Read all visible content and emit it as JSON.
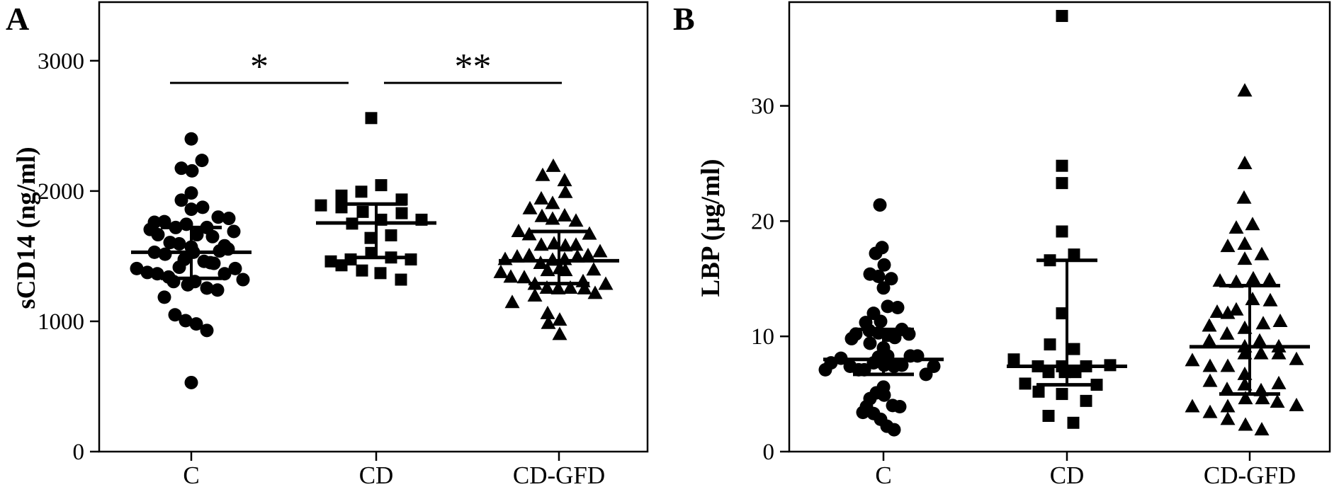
{
  "figure": {
    "background": "#ffffff",
    "ink_color": "#000000"
  },
  "chart_data": [
    {
      "type": "scatter",
      "panel_label": "A",
      "title": "",
      "xlabel": "",
      "ylabel": "sCD14 (ng/ml)",
      "categories": [
        "C",
        "CD",
        "CD-GFD"
      ],
      "ylim": [
        0,
        3450
      ],
      "yticks": [
        0,
        1000,
        2000,
        3000
      ],
      "ytick_labels": [
        "0",
        "1000",
        "2000",
        "3000"
      ],
      "grid": false,
      "marker_color": "#000000",
      "groups": [
        {
          "name": "C",
          "marker": "circle",
          "median": 1530,
          "q1": 1330,
          "q3": 1720,
          "points": [
            [
              0,
              2400
            ],
            [
              15,
              2235
            ],
            [
              -14,
              2175
            ],
            [
              1,
              2155
            ],
            [
              0,
              1985
            ],
            [
              -14,
              1930
            ],
            [
              0,
              1860
            ],
            [
              16,
              1875
            ],
            [
              38,
              1800
            ],
            [
              53,
              1790
            ],
            [
              -52,
              1760
            ],
            [
              -38,
              1765
            ],
            [
              -22,
              1720
            ],
            [
              -7,
              1745
            ],
            [
              -58,
              1705
            ],
            [
              -47,
              1665
            ],
            [
              22,
              1720
            ],
            [
              60,
              1690
            ],
            [
              8,
              1665
            ],
            [
              30,
              1650
            ],
            [
              -30,
              1605
            ],
            [
              -17,
              1595
            ],
            [
              0,
              1570
            ],
            [
              47,
              1580
            ],
            [
              -52,
              1530
            ],
            [
              -37,
              1515
            ],
            [
              -10,
              1475
            ],
            [
              3,
              1530
            ],
            [
              40,
              1540
            ],
            [
              52,
              1555
            ],
            [
              -77,
              1405
            ],
            [
              -62,
              1375
            ],
            [
              -48,
              1365
            ],
            [
              -17,
              1415
            ],
            [
              -32,
              1340
            ],
            [
              -5,
              1280
            ],
            [
              18,
              1460
            ],
            [
              27,
              1450
            ],
            [
              32,
              1445
            ],
            [
              47,
              1365
            ],
            [
              62,
              1405
            ],
            [
              73,
              1320
            ],
            [
              -25,
              1305
            ],
            [
              5,
              1305
            ],
            [
              22,
              1255
            ],
            [
              37,
              1240
            ],
            [
              -38,
              1185
            ],
            [
              -23,
              1050
            ],
            [
              -8,
              1005
            ],
            [
              7,
              980
            ],
            [
              22,
              930
            ],
            [
              0,
              530
            ]
          ]
        },
        {
          "name": "CD",
          "marker": "square",
          "median": 1755,
          "q1": 1490,
          "q3": 1900,
          "points": [
            [
              -7,
              2560
            ],
            [
              7,
              2045
            ],
            [
              -21,
              1995
            ],
            [
              -49,
              1965
            ],
            [
              -78,
              1890
            ],
            [
              -49,
              1875
            ],
            [
              36,
              1935
            ],
            [
              -19,
              1840
            ],
            [
              36,
              1830
            ],
            [
              -34,
              1750
            ],
            [
              7,
              1780
            ],
            [
              64,
              1780
            ],
            [
              -8,
              1640
            ],
            [
              21,
              1660
            ],
            [
              -7,
              1525
            ],
            [
              -64,
              1460
            ],
            [
              -49,
              1430
            ],
            [
              -36,
              1475
            ],
            [
              21,
              1490
            ],
            [
              49,
              1475
            ],
            [
              -20,
              1390
            ],
            [
              6,
              1370
            ],
            [
              35,
              1320
            ]
          ]
        },
        {
          "name": "CD-GFD",
          "marker": "triangle",
          "median": 1465,
          "q1": 1290,
          "q3": 1690,
          "points": [
            [
              -8,
              2190
            ],
            [
              -23,
              2120
            ],
            [
              8,
              2080
            ],
            [
              9,
              1990
            ],
            [
              -25,
              1940
            ],
            [
              -9,
              1905
            ],
            [
              -41,
              1865
            ],
            [
              -24,
              1805
            ],
            [
              -9,
              1785
            ],
            [
              8,
              1810
            ],
            [
              24,
              1770
            ],
            [
              -57,
              1690
            ],
            [
              -42,
              1665
            ],
            [
              43,
              1670
            ],
            [
              -25,
              1585
            ],
            [
              -7,
              1595
            ],
            [
              9,
              1580
            ],
            [
              24,
              1585
            ],
            [
              58,
              1535
            ],
            [
              -76,
              1475
            ],
            [
              -59,
              1495
            ],
            [
              -42,
              1505
            ],
            [
              -26,
              1445
            ],
            [
              -9,
              1470
            ],
            [
              8,
              1475
            ],
            [
              26,
              1495
            ],
            [
              41,
              1505
            ],
            [
              -82,
              1375
            ],
            [
              -68,
              1340
            ],
            [
              -49,
              1335
            ],
            [
              -16,
              1390
            ],
            [
              1,
              1405
            ],
            [
              9,
              1390
            ],
            [
              49,
              1395
            ],
            [
              -34,
              1285
            ],
            [
              -17,
              1255
            ],
            [
              -1,
              1250
            ],
            [
              16,
              1255
            ],
            [
              34,
              1305
            ],
            [
              36,
              1250
            ],
            [
              51,
              1215
            ],
            [
              66,
              1285
            ],
            [
              -66,
              1145
            ],
            [
              -34,
              1195
            ],
            [
              -16,
              1060
            ],
            [
              -15,
              985
            ],
            [
              1,
              1010
            ],
            [
              1,
              900
            ]
          ]
        }
      ],
      "significance": [
        {
          "between": [
            "C",
            "CD"
          ],
          "label": "*",
          "bar_y": 2830,
          "x1_offset": -30,
          "x2_offset": -39
        },
        {
          "between": [
            "CD",
            "CD-GFD"
          ],
          "label": "**",
          "bar_y": 2830,
          "x1_offset": 11,
          "x2_offset": 4
        }
      ]
    },
    {
      "type": "scatter",
      "panel_label": "B",
      "title": "",
      "xlabel": "",
      "ylabel": "LBP (µg/ml)",
      "categories": [
        "C",
        "CD",
        "CD-GFD"
      ],
      "ylim": [
        0,
        39
      ],
      "yticks": [
        0,
        10,
        20,
        30
      ],
      "ytick_labels": [
        "0",
        "10",
        "20",
        "30"
      ],
      "grid": false,
      "marker_color": "#000000",
      "groups": [
        {
          "name": "C",
          "marker": "circle",
          "median": 8.0,
          "q1": 6.7,
          "q3": 10.6,
          "points": [
            [
              -5,
              21.4
            ],
            [
              -11,
              17.2
            ],
            [
              -2,
              17.7
            ],
            [
              1,
              16.2
            ],
            [
              -19,
              15.4
            ],
            [
              -7,
              15.2
            ],
            [
              11,
              15.0
            ],
            [
              0,
              14.2
            ],
            [
              6,
              12.6
            ],
            [
              20,
              12.5
            ],
            [
              -14,
              12.0
            ],
            [
              -4,
              11.3
            ],
            [
              -25,
              11.2
            ],
            [
              -39,
              10.2
            ],
            [
              -45,
              9.8
            ],
            [
              -20,
              10.5
            ],
            [
              -7,
              10.3
            ],
            [
              6,
              10.1
            ],
            [
              16,
              9.9
            ],
            [
              26,
              10.6
            ],
            [
              36,
              10.2
            ],
            [
              -19,
              9.4
            ],
            [
              0,
              9.0
            ],
            [
              -60,
              8.1
            ],
            [
              -74,
              7.7
            ],
            [
              -82,
              7.1
            ],
            [
              -47,
              7.4
            ],
            [
              -35,
              7.1
            ],
            [
              -27,
              7.1
            ],
            [
              -14,
              7.7
            ],
            [
              -7,
              8.2
            ],
            [
              6,
              8.3
            ],
            [
              1,
              7.5
            ],
            [
              15,
              7.4
            ],
            [
              26,
              7.5
            ],
            [
              38,
              8.3
            ],
            [
              48,
              8.3
            ],
            [
              60,
              6.7
            ],
            [
              71,
              7.4
            ],
            [
              0,
              5.6
            ],
            [
              -10,
              5.1
            ],
            [
              -19,
              4.6
            ],
            [
              1,
              4.9
            ],
            [
              -24,
              3.9
            ],
            [
              13,
              4.0
            ],
            [
              23,
              3.9
            ],
            [
              -29,
              3.4
            ],
            [
              -14,
              3.3
            ],
            [
              -4,
              2.8
            ],
            [
              5,
              2.2
            ],
            [
              15,
              1.9
            ]
          ]
        },
        {
          "name": "CD",
          "marker": "square",
          "median": 7.4,
          "q1": 5.8,
          "q3": 16.6,
          "points": [
            [
              -7,
              37.8
            ],
            [
              -7,
              24.8
            ],
            [
              -7,
              23.3
            ],
            [
              -7,
              19.1
            ],
            [
              10,
              17.1
            ],
            [
              -24,
              16.6
            ],
            [
              -7,
              12.0
            ],
            [
              -24,
              9.3
            ],
            [
              10,
              8.9
            ],
            [
              -75,
              8.0
            ],
            [
              -41,
              7.4
            ],
            [
              -26,
              6.9
            ],
            [
              -7,
              7.4
            ],
            [
              -3,
              6.9
            ],
            [
              12,
              6.9
            ],
            [
              27,
              7.4
            ],
            [
              61,
              7.5
            ],
            [
              -59,
              5.9
            ],
            [
              -40,
              5.2
            ],
            [
              42,
              5.8
            ],
            [
              -7,
              5.0
            ],
            [
              27,
              4.4
            ],
            [
              -26,
              3.1
            ],
            [
              9,
              2.5
            ]
          ]
        },
        {
          "name": "CD-GFD",
          "marker": "triangle",
          "median": 9.1,
          "q1": 5.0,
          "q3": 14.4,
          "points": [
            [
              -7,
              31.3
            ],
            [
              -7,
              25.0
            ],
            [
              -8,
              22.0
            ],
            [
              -19,
              19.4
            ],
            [
              4,
              19.7
            ],
            [
              -31,
              17.8
            ],
            [
              -7,
              18.0
            ],
            [
              17,
              17.1
            ],
            [
              -7,
              16.7
            ],
            [
              -42,
              14.8
            ],
            [
              -19,
              14.7
            ],
            [
              5,
              15.0
            ],
            [
              28,
              14.9
            ],
            [
              4,
              13.2
            ],
            [
              29,
              13.1
            ],
            [
              -46,
              12.1
            ],
            [
              -31,
              12.0
            ],
            [
              -19,
              12.3
            ],
            [
              -57,
              10.9
            ],
            [
              19,
              11.1
            ],
            [
              43,
              11.3
            ],
            [
              -32,
              10.2
            ],
            [
              -7,
              10.7
            ],
            [
              -57,
              9.6
            ],
            [
              14,
              9.6
            ],
            [
              -7,
              9.1
            ],
            [
              -7,
              8.5
            ],
            [
              41,
              9.1
            ],
            [
              41,
              8.5
            ],
            [
              -81,
              7.9
            ],
            [
              16,
              8.5
            ],
            [
              66,
              8.0
            ],
            [
              -56,
              7.4
            ],
            [
              -31,
              7.4
            ],
            [
              -7,
              6.7
            ],
            [
              -56,
              6.1
            ],
            [
              -7,
              5.8
            ],
            [
              -32,
              5.4
            ],
            [
              16,
              5.3
            ],
            [
              41,
              5.9
            ],
            [
              -6,
              4.6
            ],
            [
              18,
              4.6
            ],
            [
              39,
              4.3
            ],
            [
              66,
              4.0
            ],
            [
              -81,
              3.9
            ],
            [
              -56,
              3.4
            ],
            [
              -31,
              3.9
            ],
            [
              -31,
              2.8
            ],
            [
              -6,
              2.3
            ],
            [
              17,
              1.9
            ]
          ]
        }
      ],
      "significance": []
    }
  ]
}
